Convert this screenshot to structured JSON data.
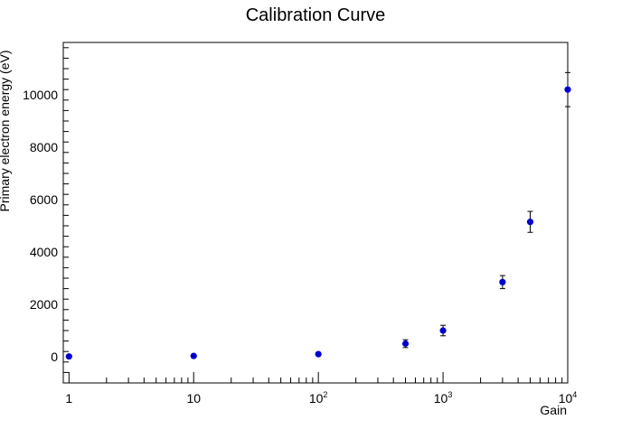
{
  "chart_data": {
    "type": "scatter",
    "title": "Calibration Curve",
    "xlabel": "Gain",
    "ylabel": "Primary electron energy (eV)",
    "x_scale": "log",
    "xlim": [
      0.9,
      10000
    ],
    "ylim": [
      -1000,
      12000
    ],
    "grid": false,
    "legend": "none",
    "marker_color": "#0000cc",
    "errorbar_color": "#000000",
    "x_ticks": [
      {
        "value": 1,
        "label": "1"
      },
      {
        "value": 10,
        "label": "10"
      },
      {
        "value": 100,
        "base": "10",
        "exp": "2"
      },
      {
        "value": 1000,
        "base": "10",
        "exp": "3"
      },
      {
        "value": 10000,
        "base": "10",
        "exp": "4"
      }
    ],
    "y_ticks": [
      {
        "value": 0,
        "label": "0"
      },
      {
        "value": 2000,
        "label": "2000"
      },
      {
        "value": 4000,
        "label": "4000"
      },
      {
        "value": 6000,
        "label": "6000"
      },
      {
        "value": 8000,
        "label": "8000"
      },
      {
        "value": 10000,
        "label": "10000"
      }
    ],
    "points": [
      {
        "x": 1,
        "y": 10,
        "yerr": 10
      },
      {
        "x": 10,
        "y": 30,
        "yerr": 10
      },
      {
        "x": 100,
        "y": 100,
        "yerr": 20
      },
      {
        "x": 500,
        "y": 500,
        "yerr": 150
      },
      {
        "x": 1000,
        "y": 1000,
        "yerr": 200
      },
      {
        "x": 3000,
        "y": 2850,
        "yerr": 250
      },
      {
        "x": 5000,
        "y": 5150,
        "yerr": 400
      },
      {
        "x": 10000,
        "y": 10200,
        "yerr": 650
      }
    ]
  }
}
